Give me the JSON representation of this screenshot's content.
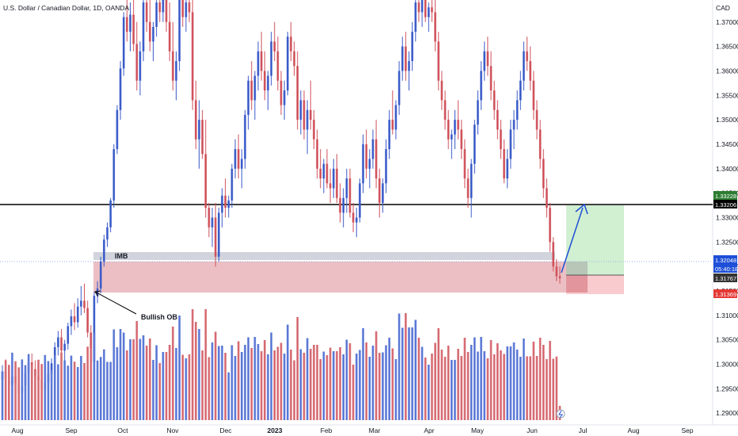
{
  "chart_data": {
    "type": "candlestick",
    "title": "U.S. Dollar / Canadian Dollar, 1D, OANDA",
    "currency": "CAD",
    "x_ticks": [
      "Aug",
      "Sep",
      "Oct",
      "Nov",
      "Dec",
      "2023",
      "Feb",
      "Mar",
      "Apr",
      "May",
      "Jun",
      "Jul",
      "Aug",
      "Sep"
    ],
    "y_ticks": [
      "1.37000",
      "1.36500",
      "1.36000",
      "1.35500",
      "1.35000",
      "1.34500",
      "1.34000",
      "1.33500",
      "1.33000",
      "1.32500",
      "1.32000",
      "1.31500",
      "1.31000",
      "1.30500",
      "1.30000",
      "1.29500",
      "1.29000"
    ],
    "ylim": [
      1.2876,
      1.3745
    ],
    "candles_ohlc": [
      [
        1.2968,
        1.2998,
        1.295,
        1.2985
      ],
      [
        1.2985,
        1.301,
        1.2962,
        1.2972
      ],
      [
        1.2972,
        1.2995,
        1.294,
        1.2958
      ],
      [
        1.2958,
        1.2988,
        1.293,
        1.2975
      ],
      [
        1.2975,
        1.3002,
        1.2948,
        1.2962
      ],
      [
        1.2962,
        1.2985,
        1.2928,
        1.2941
      ],
      [
        1.2941,
        1.2968,
        1.292,
        1.2956
      ],
      [
        1.2956,
        1.299,
        1.2938,
        1.2982
      ],
      [
        1.2982,
        1.3018,
        1.2966,
        1.3004
      ],
      [
        1.3004,
        1.3022,
        1.298,
        1.299
      ],
      [
        1.299,
        1.3008,
        1.2962,
        1.2975
      ],
      [
        1.2975,
        1.2995,
        1.295,
        1.2968
      ],
      [
        1.2968,
        1.2988,
        1.2935,
        1.2948
      ],
      [
        1.2948,
        1.2972,
        1.2925,
        1.2962
      ],
      [
        1.2962,
        1.299,
        1.294,
        1.298
      ],
      [
        1.298,
        1.3012,
        1.2968,
        1.3002
      ],
      [
        1.3002,
        1.3045,
        1.299,
        1.3035
      ],
      [
        1.3035,
        1.3068,
        1.3018,
        1.3055
      ],
      [
        1.3055,
        1.3072,
        1.302,
        1.3028
      ],
      [
        1.3028,
        1.305,
        1.3,
        1.3042
      ],
      [
        1.3042,
        1.3085,
        1.303,
        1.3078
      ],
      [
        1.3078,
        1.3112,
        1.306,
        1.3098
      ],
      [
        1.3098,
        1.3125,
        1.307,
        1.3086
      ],
      [
        1.3086,
        1.3135,
        1.3075,
        1.3118
      ],
      [
        1.3118,
        1.316,
        1.31,
        1.313
      ],
      [
        1.313,
        1.3165,
        1.3105,
        1.3115
      ],
      [
        1.3115,
        1.313,
        1.3055,
        1.3065
      ],
      [
        1.3065,
        1.308,
        1.299,
        1.3005
      ],
      [
        1.3005,
        1.3148,
        1.2995,
        1.314
      ],
      [
        1.314,
        1.317,
        1.3125,
        1.3155
      ],
      [
        1.3155,
        1.322,
        1.3145,
        1.321
      ],
      [
        1.321,
        1.3265,
        1.32,
        1.3255
      ],
      [
        1.3255,
        1.329,
        1.324,
        1.328
      ],
      [
        1.328,
        1.334,
        1.327,
        1.3335
      ],
      [
        1.3335,
        1.345,
        1.332,
        1.344
      ],
      [
        1.344,
        1.353,
        1.343,
        1.352
      ],
      [
        1.352,
        1.362,
        1.35,
        1.3605
      ],
      [
        1.3605,
        1.372,
        1.359,
        1.371
      ],
      [
        1.371,
        1.376,
        1.366,
        1.368
      ],
      [
        1.368,
        1.374,
        1.364,
        1.3715
      ],
      [
        1.3715,
        1.376,
        1.364,
        1.3655
      ],
      [
        1.3655,
        1.37,
        1.356,
        1.358
      ],
      [
        1.358,
        1.366,
        1.355,
        1.364
      ],
      [
        1.364,
        1.376,
        1.362,
        1.374
      ],
      [
        1.374,
        1.376,
        1.368,
        1.37
      ],
      [
        1.37,
        1.376,
        1.364,
        1.366
      ],
      [
        1.366,
        1.37,
        1.362,
        1.369
      ],
      [
        1.369,
        1.376,
        1.367,
        1.374
      ],
      [
        1.374,
        1.376,
        1.37,
        1.372
      ],
      [
        1.372,
        1.376,
        1.37,
        1.3745
      ],
      [
        1.3745,
        1.376,
        1.368,
        1.37
      ],
      [
        1.37,
        1.374,
        1.362,
        1.364
      ],
      [
        1.364,
        1.37,
        1.356,
        1.358
      ],
      [
        1.358,
        1.364,
        1.354,
        1.362
      ],
      [
        1.362,
        1.376,
        1.36,
        1.3745
      ],
      [
        1.3745,
        1.376,
        1.369,
        1.371
      ],
      [
        1.371,
        1.376,
        1.368,
        1.374
      ],
      [
        1.374,
        1.376,
        1.37,
        1.372
      ],
      [
        1.372,
        1.375,
        1.352,
        1.354
      ],
      [
        1.354,
        1.358,
        1.344,
        1.346
      ],
      [
        1.346,
        1.354,
        1.34,
        1.35
      ],
      [
        1.35,
        1.352,
        1.342,
        1.343
      ],
      [
        1.343,
        1.35,
        1.33,
        1.332
      ],
      [
        1.332,
        1.333,
        1.326,
        1.328
      ],
      [
        1.328,
        1.332,
        1.324,
        1.33
      ],
      [
        1.33,
        1.333,
        1.32,
        1.322
      ],
      [
        1.322,
        1.332,
        1.321,
        1.331
      ],
      [
        1.331,
        1.336,
        1.328,
        1.3345
      ],
      [
        1.3345,
        1.338,
        1.33,
        1.332
      ],
      [
        1.332,
        1.3345,
        1.33,
        1.3335
      ],
      [
        1.3335,
        1.341,
        1.332,
        1.34
      ],
      [
        1.34,
        1.346,
        1.338,
        1.344
      ],
      [
        1.344,
        1.347,
        1.338,
        1.34
      ],
      [
        1.34,
        1.344,
        1.336,
        1.342
      ],
      [
        1.342,
        1.352,
        1.34,
        1.351
      ],
      [
        1.351,
        1.359,
        1.348,
        1.358
      ],
      [
        1.358,
        1.362,
        1.352,
        1.354
      ],
      [
        1.354,
        1.36,
        1.35,
        1.359
      ],
      [
        1.359,
        1.366,
        1.356,
        1.364
      ],
      [
        1.364,
        1.368,
        1.358,
        1.36
      ],
      [
        1.36,
        1.364,
        1.354,
        1.356
      ],
      [
        1.356,
        1.36,
        1.352,
        1.359
      ],
      [
        1.359,
        1.368,
        1.357,
        1.366
      ],
      [
        1.366,
        1.37,
        1.362,
        1.364
      ],
      [
        1.364,
        1.367,
        1.356,
        1.358
      ],
      [
        1.358,
        1.36,
        1.351,
        1.353
      ],
      [
        1.353,
        1.358,
        1.35,
        1.356
      ],
      [
        1.356,
        1.368,
        1.355,
        1.367
      ],
      [
        1.367,
        1.37,
        1.362,
        1.364
      ],
      [
        1.364,
        1.366,
        1.359,
        1.361
      ],
      [
        1.361,
        1.364,
        1.348,
        1.35
      ],
      [
        1.35,
        1.356,
        1.347,
        1.354
      ],
      [
        1.354,
        1.356,
        1.346,
        1.348
      ],
      [
        1.348,
        1.354,
        1.343,
        1.352
      ],
      [
        1.352,
        1.358,
        1.348,
        1.35
      ],
      [
        1.35,
        1.352,
        1.344,
        1.346
      ],
      [
        1.346,
        1.348,
        1.338,
        1.34
      ],
      [
        1.34,
        1.344,
        1.336,
        1.338
      ],
      [
        1.338,
        1.342,
        1.335,
        1.341
      ],
      [
        1.341,
        1.344,
        1.336,
        1.337
      ],
      [
        1.337,
        1.34,
        1.333,
        1.336
      ],
      [
        1.336,
        1.342,
        1.334,
        1.34
      ],
      [
        1.34,
        1.343,
        1.333,
        1.334
      ],
      [
        1.334,
        1.337,
        1.329,
        1.331
      ],
      [
        1.331,
        1.336,
        1.328,
        1.334
      ],
      [
        1.334,
        1.34,
        1.331,
        1.338
      ],
      [
        1.338,
        1.34,
        1.33,
        1.331
      ],
      [
        1.331,
        1.333,
        1.327,
        1.329
      ],
      [
        1.329,
        1.332,
        1.326,
        1.33
      ],
      [
        1.33,
        1.338,
        1.329,
        1.337
      ],
      [
        1.337,
        1.347,
        1.335,
        1.345
      ],
      [
        1.345,
        1.348,
        1.338,
        1.34
      ],
      [
        1.34,
        1.344,
        1.336,
        1.342
      ],
      [
        1.342,
        1.348,
        1.34,
        1.346
      ],
      [
        1.346,
        1.35,
        1.336,
        1.338
      ],
      [
        1.338,
        1.34,
        1.33,
        1.333
      ],
      [
        1.333,
        1.338,
        1.331,
        1.337
      ],
      [
        1.337,
        1.346,
        1.335,
        1.344
      ],
      [
        1.344,
        1.352,
        1.342,
        1.35
      ],
      [
        1.35,
        1.356,
        1.347,
        1.348
      ],
      [
        1.348,
        1.354,
        1.346,
        1.353
      ],
      [
        1.353,
        1.362,
        1.351,
        1.36
      ],
      [
        1.36,
        1.367,
        1.358,
        1.365
      ],
      [
        1.365,
        1.368,
        1.358,
        1.36
      ],
      [
        1.36,
        1.364,
        1.356,
        1.362
      ],
      [
        1.362,
        1.37,
        1.36,
        1.368
      ],
      [
        1.368,
        1.375,
        1.366,
        1.374
      ],
      [
        1.374,
        1.376,
        1.37,
        1.372
      ],
      [
        1.372,
        1.376,
        1.369,
        1.3745
      ],
      [
        1.3745,
        1.376,
        1.37,
        1.371
      ],
      [
        1.371,
        1.374,
        1.368,
        1.373
      ],
      [
        1.373,
        1.376,
        1.37,
        1.372
      ],
      [
        1.372,
        1.375,
        1.364,
        1.366
      ],
      [
        1.366,
        1.368,
        1.356,
        1.358
      ],
      [
        1.358,
        1.36,
        1.352,
        1.354
      ],
      [
        1.354,
        1.356,
        1.348,
        1.35
      ],
      [
        1.35,
        1.352,
        1.344,
        1.346
      ],
      [
        1.346,
        1.348,
        1.342,
        1.347
      ],
      [
        1.347,
        1.352,
        1.344,
        1.35
      ],
      [
        1.35,
        1.354,
        1.346,
        1.348
      ],
      [
        1.348,
        1.35,
        1.342,
        1.344
      ],
      [
        1.344,
        1.346,
        1.336,
        1.338
      ],
      [
        1.338,
        1.34,
        1.332,
        1.334
      ],
      [
        1.334,
        1.342,
        1.33,
        1.341
      ],
      [
        1.341,
        1.35,
        1.339,
        1.349
      ],
      [
        1.349,
        1.356,
        1.347,
        1.354
      ],
      [
        1.354,
        1.362,
        1.352,
        1.36
      ],
      [
        1.36,
        1.366,
        1.358,
        1.364
      ],
      [
        1.364,
        1.367,
        1.359,
        1.361
      ],
      [
        1.361,
        1.364,
        1.354,
        1.356
      ],
      [
        1.356,
        1.358,
        1.35,
        1.352
      ],
      [
        1.352,
        1.354,
        1.346,
        1.348
      ],
      [
        1.348,
        1.35,
        1.342,
        1.344
      ],
      [
        1.344,
        1.346,
        1.337,
        1.338
      ],
      [
        1.338,
        1.344,
        1.336,
        1.342
      ],
      [
        1.342,
        1.35,
        1.34,
        1.348
      ],
      [
        1.348,
        1.352,
        1.344,
        1.35
      ],
      [
        1.35,
        1.356,
        1.348,
        1.354
      ],
      [
        1.354,
        1.36,
        1.352,
        1.358
      ],
      [
        1.358,
        1.366,
        1.356,
        1.364
      ],
      [
        1.364,
        1.367,
        1.36,
        1.362
      ],
      [
        1.362,
        1.365,
        1.356,
        1.358
      ],
      [
        1.358,
        1.36,
        1.35,
        1.352
      ],
      [
        1.352,
        1.354,
        1.346,
        1.348
      ],
      [
        1.348,
        1.35,
        1.34,
        1.342
      ],
      [
        1.342,
        1.344,
        1.334,
        1.336
      ],
      [
        1.336,
        1.338,
        1.33,
        1.332
      ],
      [
        1.332,
        1.333,
        1.323,
        1.325
      ],
      [
        1.325,
        1.326,
        1.319,
        1.32
      ],
      [
        1.32,
        1.3215,
        1.317,
        1.318
      ],
      [
        1.318,
        1.32,
        1.3165,
        1.3176
      ]
    ],
    "volume_note": "volume histogram in lower pane (unlabeled)",
    "annotations": {
      "imb_label": "IMB",
      "ob_label": "Bullish OB"
    },
    "horizontal_line": 1.33206,
    "zones": {
      "imb": [
        1.3211,
        1.3219
      ],
      "bullish_ob": [
        1.3139,
        1.3208
      ]
    },
    "position": {
      "entry": 1.31767,
      "target": 1.33228,
      "stop": 1.31369
    },
    "price_badges": [
      {
        "text": "1.33228",
        "color": "#2e7d32"
      },
      {
        "text": "1.33206",
        "color": "#000000"
      },
      {
        "text": "1.32048",
        "color": "#1e4fd8"
      },
      {
        "text": "05:40:18",
        "color": "#1e4fd8"
      },
      {
        "text": "1.31767",
        "color": "#333333"
      },
      {
        "text": "1.31369",
        "color": "#e53935"
      }
    ],
    "colors": {
      "up": "#3b5cc9",
      "down": "#d0525c",
      "vol_up": "#5b78d6",
      "vol_down": "#d66a72"
    }
  }
}
